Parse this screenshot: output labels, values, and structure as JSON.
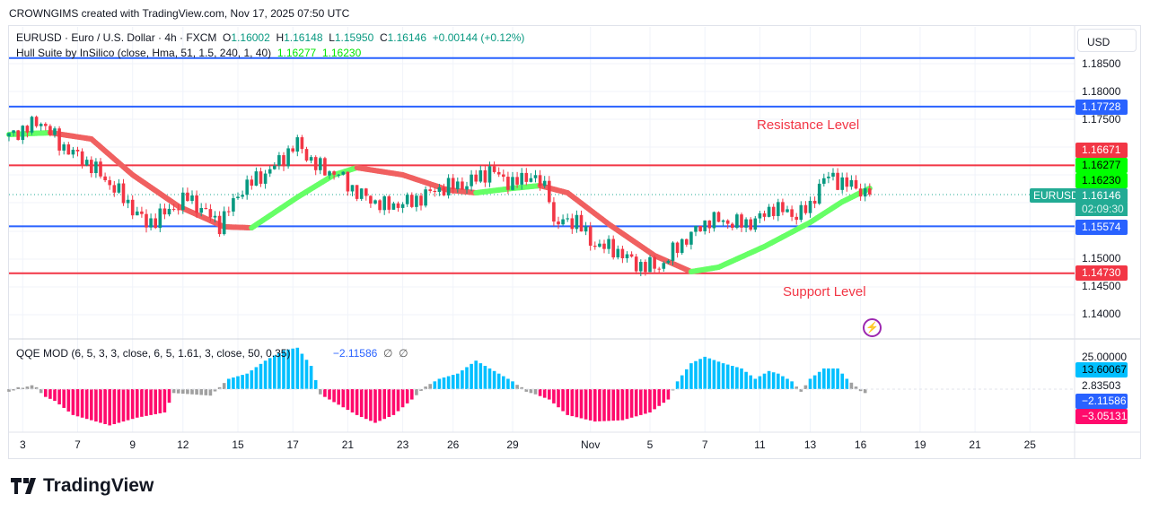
{
  "credit": "CROWNGIMS created with TradingView.com, Nov 17, 2025 07:50 UTC",
  "legend": {
    "symbol": "EURUSD · Euro / U.S. Dollar · 4h · FXCM",
    "o_label": "O",
    "o": "1.16002",
    "h_label": "H",
    "h": "1.16148",
    "l_label": "L",
    "l": "1.15950",
    "c_label": "C",
    "c": "1.16146",
    "change": "+0.00144 (+0.12%)",
    "hull": "Hull Suite by InSilico (close, Hma, 51, 1.5, 240, 1, 40)",
    "hull_v1": "1.16277",
    "hull_v2": "1.16230",
    "qqe": "QQE MOD (6, 5, 3, 3, close, 6, 5, 1.61, 3, close, 50, 0.35)",
    "qqe_v": "−2.11586",
    "qqe_na1": "∅",
    "qqe_na2": "∅"
  },
  "currency": "USD",
  "annotations": {
    "resistance": "Resistance Level",
    "support": "Support Level"
  },
  "symbol_tag": "EURUSD",
  "countdown": "02:09:30",
  "brand": "TradingView",
  "colors": {
    "up": "#089981",
    "down": "#f23645",
    "hull_up": "#66ff66",
    "hull_down": "#f06060",
    "blue_line": "#2962ff",
    "red_line": "#f23645",
    "qqe_up": "#00bfff",
    "qqe_down": "#ff0a6c",
    "qqe_neutral": "#a0a0a0"
  },
  "chart_data": {
    "type": "candlestick",
    "price_axis": {
      "ticks": [
        "1.18500",
        "1.18000",
        "1.17500",
        "1.15000",
        "1.14500",
        "1.14000"
      ],
      "ylim": [
        1.135,
        1.191
      ]
    },
    "price_labels": [
      {
        "value": "1.17728",
        "bg": "#2962ff",
        "fg": "#fff"
      },
      {
        "value": "1.16671",
        "bg": "#f23645",
        "fg": "#fff"
      },
      {
        "value": "1.16277",
        "bg": "#00ff00",
        "fg": "#000"
      },
      {
        "value": "1.16230",
        "bg": "#00ff00",
        "fg": "#000"
      },
      {
        "value": "1.16146",
        "bg": "#22ab94",
        "fg": "#fff"
      },
      {
        "value": "1.15574",
        "bg": "#2962ff",
        "fg": "#fff"
      },
      {
        "value": "1.14730",
        "bg": "#f23645",
        "fg": "#fff"
      }
    ],
    "horizontal_lines": [
      {
        "price": 1.186,
        "color": "#2962ff"
      },
      {
        "price": 1.17728,
        "color": "#2962ff"
      },
      {
        "price": 1.16671,
        "color": "#f23645"
      },
      {
        "price": 1.15574,
        "color": "#2962ff"
      },
      {
        "price": 1.1473,
        "color": "#f23645"
      }
    ],
    "last_price": 1.16146,
    "date_ticks": [
      {
        "label": "3",
        "bar": 3
      },
      {
        "label": "7",
        "bar": 15
      },
      {
        "label": "9",
        "bar": 27
      },
      {
        "label": "12",
        "bar": 38
      },
      {
        "label": "15",
        "bar": 50
      },
      {
        "label": "17",
        "bar": 62
      },
      {
        "label": "21",
        "bar": 74
      },
      {
        "label": "23",
        "bar": 86
      },
      {
        "label": "26",
        "bar": 97
      },
      {
        "label": "29",
        "bar": 110
      },
      {
        "label": "Nov",
        "bar": 127
      },
      {
        "label": "5",
        "bar": 140
      },
      {
        "label": "7",
        "bar": 152
      },
      {
        "label": "11",
        "bar": 164
      },
      {
        "label": "13",
        "bar": 175
      },
      {
        "label": "16",
        "bar": 186
      },
      {
        "label": "19",
        "bar": 199
      },
      {
        "label": "21",
        "bar": 211
      },
      {
        "label": "25",
        "bar": 223
      }
    ],
    "close_path": [
      [
        0,
        1.17194
      ],
      [
        7,
        1.17468
      ],
      [
        11,
        1.17065
      ],
      [
        18,
        1.16661
      ],
      [
        24,
        1.16177
      ],
      [
        30,
        1.15613
      ],
      [
        35,
        1.15855
      ],
      [
        39,
        1.16097
      ],
      [
        46,
        1.15613
      ],
      [
        51,
        1.16258
      ],
      [
        57,
        1.16581
      ],
      [
        63,
        1.17065
      ],
      [
        67,
        1.16661
      ],
      [
        72,
        1.165
      ],
      [
        76,
        1.16177
      ],
      [
        82,
        1.15935
      ],
      [
        88,
        1.16016
      ],
      [
        94,
        1.16258
      ],
      [
        100,
        1.16339
      ],
      [
        105,
        1.16581
      ],
      [
        110,
        1.16339
      ],
      [
        114,
        1.165
      ],
      [
        118,
        1.16177
      ],
      [
        119,
        1.15613
      ],
      [
        124,
        1.15694
      ],
      [
        127,
        1.1529
      ],
      [
        133,
        1.15129
      ],
      [
        137,
        1.14887
      ],
      [
        142,
        1.14839
      ],
      [
        147,
        1.1529
      ],
      [
        153,
        1.15694
      ],
      [
        161,
        1.15613
      ],
      [
        165,
        1.15774
      ],
      [
        167,
        1.15935
      ],
      [
        171,
        1.15774
      ],
      [
        175,
        1.15903
      ],
      [
        177,
        1.16339
      ],
      [
        179,
        1.16468
      ],
      [
        183,
        1.16339
      ],
      [
        188,
        1.16146
      ]
    ],
    "hull": [
      [
        0,
        1.17226
      ],
      [
        9,
        1.17258
      ],
      [
        18,
        1.17145
      ],
      [
        27,
        1.165
      ],
      [
        37,
        1.15935
      ],
      [
        47,
        1.15565
      ],
      [
        53,
        1.15548
      ],
      [
        63,
        1.16097
      ],
      [
        71,
        1.165
      ],
      [
        76,
        1.16629
      ],
      [
        86,
        1.165
      ],
      [
        96,
        1.16226
      ],
      [
        102,
        1.16177
      ],
      [
        110,
        1.16258
      ],
      [
        116,
        1.16306
      ],
      [
        122,
        1.16177
      ],
      [
        131,
        1.15613
      ],
      [
        141,
        1.15048
      ],
      [
        149,
        1.14758
      ],
      [
        155,
        1.14839
      ],
      [
        165,
        1.1521
      ],
      [
        175,
        1.15645
      ],
      [
        182,
        1.16016
      ],
      [
        188,
        1.16258
      ]
    ],
    "qqe_axis": {
      "ticks": [
        "25.00000",
        "2.83503"
      ],
      "labels": [
        {
          "value": "13.60067",
          "bg": "#00bfff",
          "fg": "#000"
        },
        {
          "value": "−2.11586",
          "bg": "#2962ff",
          "fg": "#fff"
        },
        {
          "value": "−3.05131",
          "bg": "#ff0a6c",
          "fg": "#fff"
        }
      ]
    },
    "qqe": [
      [
        0,
        -2
      ],
      [
        5,
        3
      ],
      [
        8,
        -6
      ],
      [
        10,
        -9
      ],
      [
        14,
        -20
      ],
      [
        22,
        -28
      ],
      [
        28,
        -22
      ],
      [
        34,
        -18
      ],
      [
        36,
        -3
      ],
      [
        40,
        -4
      ],
      [
        44,
        -5
      ],
      [
        48,
        8
      ],
      [
        52,
        12
      ],
      [
        56,
        22
      ],
      [
        60,
        30
      ],
      [
        63,
        32
      ],
      [
        66,
        18
      ],
      [
        68,
        -4
      ],
      [
        71,
        -10
      ],
      [
        76,
        -20
      ],
      [
        80,
        -26
      ],
      [
        84,
        -20
      ],
      [
        88,
        -8
      ],
      [
        91,
        2
      ],
      [
        94,
        8
      ],
      [
        98,
        12
      ],
      [
        102,
        22
      ],
      [
        106,
        14
      ],
      [
        110,
        6
      ],
      [
        113,
        -2
      ],
      [
        115,
        -4
      ],
      [
        118,
        -8
      ],
      [
        122,
        -20
      ],
      [
        128,
        -25
      ],
      [
        134,
        -24
      ],
      [
        140,
        -18
      ],
      [
        144,
        -8
      ],
      [
        146,
        6
      ],
      [
        149,
        20
      ],
      [
        152,
        25
      ],
      [
        156,
        20
      ],
      [
        160,
        16
      ],
      [
        163,
        8
      ],
      [
        166,
        14
      ],
      [
        168,
        12
      ],
      [
        171,
        6
      ],
      [
        173,
        -2
      ],
      [
        175,
        8
      ],
      [
        178,
        16
      ],
      [
        181,
        16
      ],
      [
        183,
        8
      ],
      [
        185,
        2
      ],
      [
        187,
        -3
      ]
    ]
  }
}
